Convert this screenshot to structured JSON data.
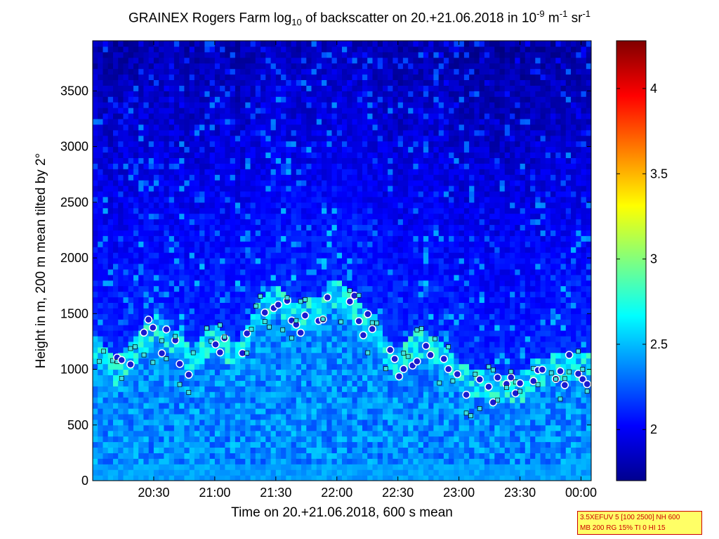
{
  "title": {
    "pre": "GRAINEX Rogers Farm log",
    "sub": "10",
    "mid": " of backscatter on 20.+21.06.2018 in 10",
    "sup1": "-9",
    "mid2": " m",
    "sup2": "-1",
    "mid3": " sr",
    "sup3": "-1"
  },
  "chart_data": {
    "type": "heatmap",
    "title": "GRAINEX Rogers Farm log10 of backscatter on 20.+21.06.2018 in 10-9 m-1 sr-1",
    "xlabel": "Time on 20.+21.06.2018, 600 s mean",
    "ylabel": "Height in m, 200 m mean tilted by 2°",
    "x_range_minutes": [
      1200,
      1445
    ],
    "x_ticks": [
      {
        "value": 1230,
        "label": "20:30"
      },
      {
        "value": 1260,
        "label": "21:00"
      },
      {
        "value": 1290,
        "label": "21:30"
      },
      {
        "value": 1320,
        "label": "22:00"
      },
      {
        "value": 1350,
        "label": "22:30"
      },
      {
        "value": 1380,
        "label": "23:00"
      },
      {
        "value": 1410,
        "label": "23:30"
      },
      {
        "value": 1440,
        "label": "00:00"
      }
    ],
    "ylim": [
      0,
      3950
    ],
    "y_ticks": [
      0,
      500,
      1000,
      1500,
      2000,
      2500,
      3000,
      3500
    ],
    "colorbar": {
      "range": [
        1.7,
        4.28
      ],
      "ticks": [
        2,
        2.5,
        3,
        3.5,
        4
      ],
      "tick_labels": [
        "2",
        "2.5",
        "3",
        "3.5",
        "4"
      ],
      "colormap": "jet"
    },
    "boundary_layer_height_markers": {
      "circles_color": "#1a1ad0",
      "circle_edge_color": "#ffffff",
      "squares_color": "#40e0e0"
    },
    "approx_layer_top_m": [
      [
        1200,
        1250
      ],
      [
        1210,
        1000
      ],
      [
        1220,
        1200
      ],
      [
        1230,
        1400
      ],
      [
        1240,
        1250
      ],
      [
        1250,
        1100
      ],
      [
        1260,
        1350
      ],
      [
        1270,
        1100
      ],
      [
        1280,
        1450
      ],
      [
        1290,
        1700
      ],
      [
        1300,
        1500
      ],
      [
        1310,
        1550
      ],
      [
        1320,
        1700
      ],
      [
        1330,
        1550
      ],
      [
        1340,
        1300
      ],
      [
        1350,
        1100
      ],
      [
        1360,
        1250
      ],
      [
        1370,
        1200
      ],
      [
        1380,
        950
      ],
      [
        1390,
        900
      ],
      [
        1400,
        850
      ],
      [
        1410,
        850
      ],
      [
        1420,
        1000
      ],
      [
        1430,
        1050
      ],
      [
        1440,
        1050
      ]
    ]
  },
  "infobox": {
    "line1": "3.5XEFUV 5 [100 2500] NH 600",
    "line2": "MB 200 RG 15% TI 0 HI 15"
  }
}
